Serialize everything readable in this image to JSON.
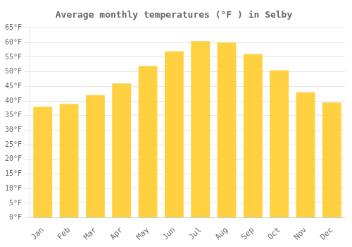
{
  "chart_data": {
    "type": "bar",
    "title": "Average monthly temperatures (°F ) in Selby",
    "categories": [
      "Jan",
      "Feb",
      "Mar",
      "Apr",
      "May",
      "Jun",
      "Jul",
      "Aug",
      "Sep",
      "Oct",
      "Nov",
      "Dec"
    ],
    "values": [
      38,
      39,
      42,
      46,
      52,
      57,
      60.5,
      60,
      56,
      50.5,
      43,
      39.5
    ],
    "color": "#FFD040",
    "ylim": [
      0,
      65
    ],
    "yticks": [
      {
        "value": 0,
        "label": "0°F"
      },
      {
        "value": 5,
        "label": "5°F"
      },
      {
        "value": 10,
        "label": "10°F"
      },
      {
        "value": 15,
        "label": "15°F"
      },
      {
        "value": 20,
        "label": "20°F"
      },
      {
        "value": 25,
        "label": "25°F"
      },
      {
        "value": 30,
        "label": "30°F"
      },
      {
        "value": 35,
        "label": "35°F"
      },
      {
        "value": 40,
        "label": "40°F"
      },
      {
        "value": 45,
        "label": "45°F"
      },
      {
        "value": 50,
        "label": "50°F"
      },
      {
        "value": 55,
        "label": "55°F"
      },
      {
        "value": 60,
        "label": "60°F"
      },
      {
        "value": 65,
        "label": "65°F"
      }
    ],
    "grid": "y"
  }
}
